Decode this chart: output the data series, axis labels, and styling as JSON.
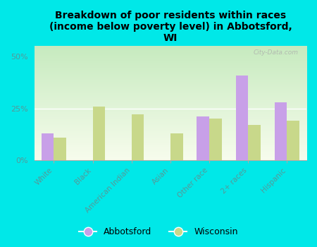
{
  "title": "Breakdown of poor residents within races\n(income below poverty level) in Abbotsford,\nWI",
  "categories": [
    "White",
    "Black",
    "American Indian",
    "Asian",
    "Other race",
    "2+ races",
    "Hispanic"
  ],
  "abbotsford": [
    13,
    0,
    0,
    0,
    21,
    41,
    28
  ],
  "wisconsin": [
    11,
    26,
    22,
    13,
    20,
    17,
    19
  ],
  "abbotsford_color": "#c8a0e8",
  "wisconsin_color": "#c8d88a",
  "background_color": "#00e8e8",
  "tick_label_color": "#559999",
  "yticks": [
    0,
    25,
    50
  ],
  "ylim": [
    0,
    55
  ],
  "ylabel_labels": [
    "0%",
    "25%",
    "50%"
  ],
  "bar_width": 0.32,
  "legend_abbotsford": "Abbotsford",
  "legend_wisconsin": "Wisconsin",
  "watermark": "City-Data.com",
  "title_fontsize": 10,
  "tick_fontsize": 7.5,
  "ytick_fontsize": 8
}
